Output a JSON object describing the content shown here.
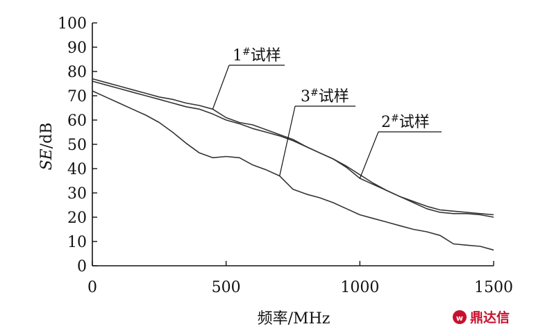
{
  "chart_data": {
    "type": "line",
    "xlabel": "频率/MHz",
    "ylabel": "SE/dB",
    "xlim": [
      0,
      1500
    ],
    "ylim": [
      0,
      100
    ],
    "x_ticks": [
      0,
      500,
      1000,
      1500
    ],
    "y_ticks": [
      0,
      10,
      20,
      30,
      40,
      50,
      60,
      70,
      80,
      90,
      100
    ],
    "grid": false,
    "series": [
      {
        "name": "1#试样",
        "color": "#333333",
        "x": [
          0,
          50,
          100,
          150,
          200,
          250,
          300,
          350,
          400,
          450,
          500,
          550,
          600,
          650,
          700,
          750,
          800,
          850,
          900,
          950,
          1000,
          1050,
          1100,
          1150,
          1200,
          1250,
          1300,
          1350,
          1400,
          1450,
          1500
        ],
        "y": [
          77,
          75.5,
          74,
          72.5,
          71,
          69.5,
          68.5,
          67,
          66,
          64.5,
          61,
          59,
          58,
          56,
          54,
          52,
          49,
          46.5,
          44,
          41,
          37.5,
          34,
          31,
          28.5,
          26,
          23.5,
          22,
          21.5,
          21.5,
          21,
          20
        ]
      },
      {
        "name": "2#试样",
        "color": "#333333",
        "x": [
          0,
          50,
          100,
          150,
          200,
          250,
          300,
          350,
          400,
          450,
          500,
          550,
          600,
          650,
          700,
          750,
          800,
          850,
          900,
          950,
          1000,
          1050,
          1100,
          1150,
          1200,
          1250,
          1300,
          1350,
          1400,
          1450,
          1500
        ],
        "y": [
          76,
          74.5,
          73,
          71.5,
          70,
          68.5,
          67,
          65.5,
          64.5,
          62.5,
          60,
          58.5,
          56.5,
          55,
          53.5,
          51.5,
          49,
          46.5,
          44,
          40.5,
          36,
          33.5,
          31,
          28.5,
          26.5,
          24.5,
          23,
          22.5,
          22,
          21.5,
          21
        ]
      },
      {
        "name": "3#试样",
        "color": "#333333",
        "x": [
          0,
          50,
          100,
          150,
          200,
          250,
          300,
          350,
          400,
          450,
          500,
          550,
          600,
          650,
          700,
          750,
          800,
          850,
          900,
          950,
          1000,
          1050,
          1100,
          1150,
          1200,
          1250,
          1300,
          1350,
          1400,
          1450,
          1500
        ],
        "y": [
          72,
          69.5,
          67,
          64.5,
          62,
          59,
          55,
          50.5,
          46.5,
          44.5,
          45,
          44.5,
          41.5,
          39.5,
          37,
          31.5,
          29.5,
          28,
          26,
          23.5,
          21,
          19.5,
          18,
          16.5,
          15,
          14,
          12.5,
          9,
          8.5,
          8,
          6.5
        ]
      }
    ]
  },
  "logo": {
    "text": "鼎达信",
    "color": "#c8102e"
  }
}
